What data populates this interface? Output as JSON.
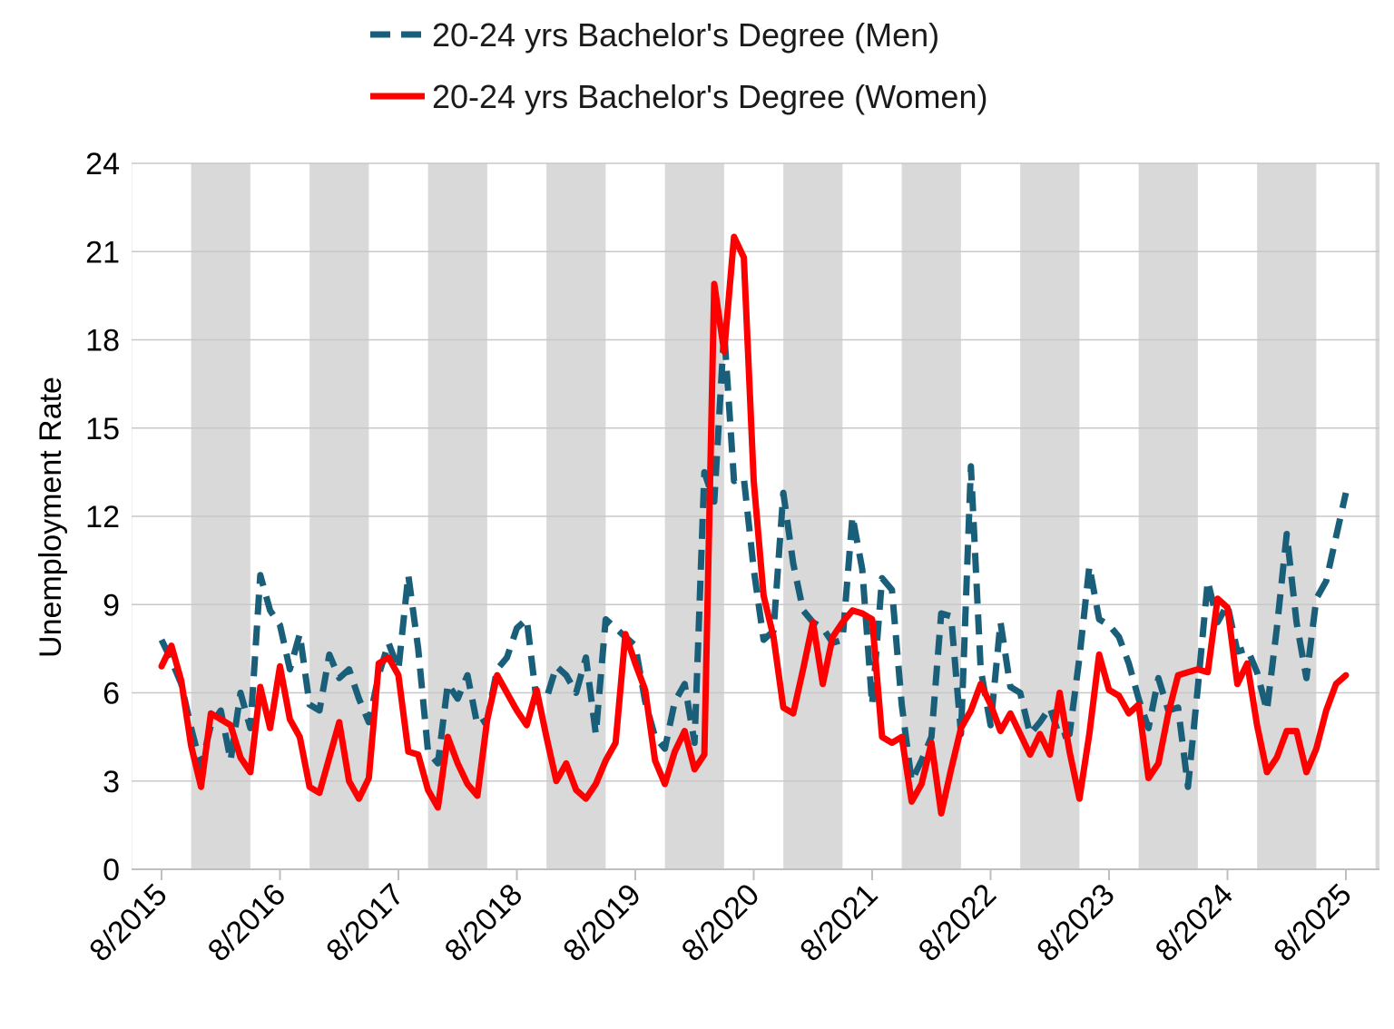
{
  "chart_data": {
    "type": "line",
    "title": "",
    "xlabel": "",
    "ylabel": "Unemployment Rate",
    "ylim": [
      0,
      24
    ],
    "yticks": [
      "0",
      "3",
      "6",
      "9",
      "12",
      "15",
      "18",
      "21",
      "24"
    ],
    "xticks": [
      "8/2015",
      "8/2016",
      "8/2017",
      "8/2018",
      "8/2019",
      "8/2020",
      "8/2021",
      "8/2022",
      "8/2023",
      "8/2024",
      "8/2025"
    ],
    "x_start": "8/2015",
    "x_end": "10/2025",
    "grid": "horizontal",
    "legend_position": "top",
    "background": "alternating gray shaded bands every six months",
    "series": [
      {
        "name": "20-24 yrs Bachelor's Degree (Men)",
        "color": "#1a5f7a",
        "style": "dashed",
        "values": [
          7.8,
          7.1,
          6.3,
          4.8,
          3.5,
          4.9,
          5.4,
          3.7,
          6.0,
          4.8,
          10.0,
          8.8,
          8.3,
          6.8,
          8.0,
          5.6,
          5.4,
          7.3,
          6.5,
          6.8,
          5.8,
          5.0,
          6.6,
          7.7,
          6.8,
          10.0,
          7.5,
          4.0,
          3.6,
          6.3,
          5.8,
          6.6,
          4.9,
          5.1,
          6.8,
          7.2,
          8.2,
          8.5,
          5.7,
          5.8,
          6.9,
          6.6,
          6.0,
          7.2,
          4.6,
          8.5,
          8.2,
          7.9,
          7.6,
          5.7,
          4.5,
          4.1,
          5.7,
          6.3,
          4.3,
          13.5,
          12.5,
          18.3,
          13.2,
          13.3,
          10.2,
          7.8,
          8.1,
          12.8,
          10.4,
          8.8,
          8.4,
          8.2,
          7.7,
          7.8,
          12.0,
          10.2,
          5.6,
          9.9,
          9.5,
          5.6,
          3.0,
          3.7,
          4.5,
          8.7,
          8.6,
          4.6,
          13.7,
          6.8,
          4.9,
          8.4,
          6.2,
          6.0,
          4.6,
          5.0,
          5.5,
          4.5,
          4.6,
          7.2,
          10.3,
          8.5,
          8.3,
          7.9,
          7.0,
          5.8,
          4.8,
          6.5,
          5.4,
          5.5,
          2.8,
          6.2,
          9.8,
          8.4,
          9.0,
          7.4,
          7.5,
          6.7,
          5.4,
          8.2,
          11.4,
          8.4,
          6.5,
          9.2,
          9.8,
          11.3,
          12.8
        ]
      },
      {
        "name": "20-24 yrs Bachelor's Degree (Women)",
        "color": "#ff0000",
        "style": "solid",
        "values": [
          6.9,
          7.6,
          6.4,
          4.2,
          2.8,
          5.3,
          5.1,
          4.9,
          3.8,
          3.3,
          6.2,
          4.8,
          6.9,
          5.1,
          4.5,
          2.8,
          2.6,
          3.8,
          5.0,
          3.0,
          2.4,
          3.1,
          7.0,
          7.2,
          6.6,
          4.0,
          3.9,
          2.7,
          2.1,
          4.5,
          3.6,
          2.9,
          2.5,
          5.1,
          6.6,
          6.0,
          5.4,
          4.9,
          6.1,
          4.5,
          3.0,
          3.6,
          2.7,
          2.4,
          2.9,
          3.7,
          4.3,
          8.0,
          7.0,
          6.1,
          3.7,
          2.9,
          4.0,
          4.7,
          3.4,
          3.9,
          19.9,
          17.6,
          21.5,
          20.8,
          13.2,
          9.3,
          7.9,
          5.5,
          5.3,
          6.8,
          8.4,
          6.3,
          7.9,
          8.4,
          8.8,
          8.7,
          8.5,
          4.5,
          4.3,
          4.5,
          2.3,
          2.9,
          4.3,
          1.9,
          3.4,
          4.8,
          5.4,
          6.3,
          5.6,
          4.7,
          5.3,
          4.6,
          3.9,
          4.6,
          3.9,
          6.0,
          4.0,
          2.4,
          4.6,
          7.3,
          6.1,
          5.9,
          5.3,
          5.6,
          3.1,
          3.6,
          5.3,
          6.6,
          6.7,
          6.8,
          6.7,
          9.2,
          8.9,
          6.3,
          7.0,
          4.9,
          3.3,
          3.8,
          4.7,
          4.7,
          3.3,
          4.1,
          5.4,
          6.3,
          6.6
        ]
      }
    ]
  }
}
